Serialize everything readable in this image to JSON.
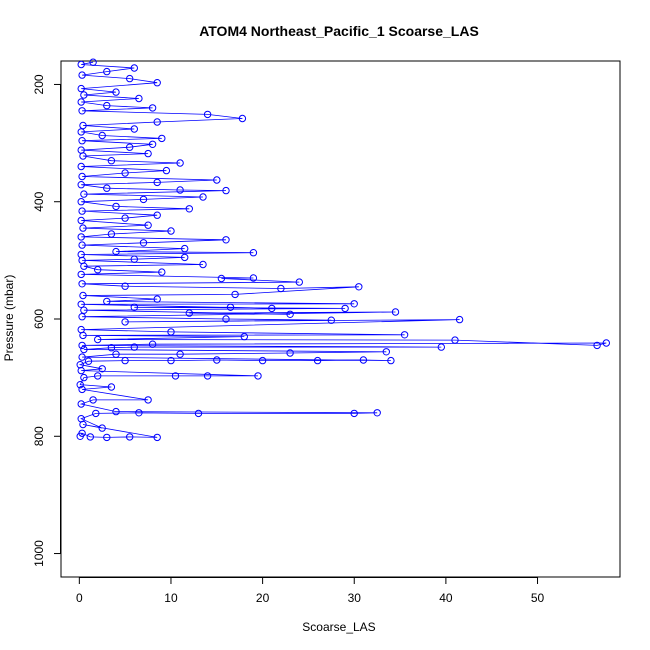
{
  "chart_data": {
    "type": "scatter",
    "title": "ATOM4 Northeast_Pacific_1 Scoarse_LAS",
    "xlabel": "Scoarse_LAS",
    "ylabel": "Pressure (mbar)",
    "xlim": [
      -2,
      59
    ],
    "ylim": [
      1040,
      160
    ],
    "y_reversed": true,
    "x_ticks": [
      0,
      10,
      20,
      30,
      40,
      50
    ],
    "y_ticks": [
      200,
      400,
      600,
      800,
      1000
    ],
    "grid": false,
    "legend": "none",
    "series_color": "#0000ff",
    "marker": "open-circle",
    "connected": true,
    "series": [
      {
        "points": [
          [
            0.1,
            800
          ],
          [
            0.3,
            795
          ],
          [
            1.2,
            801
          ],
          [
            3.0,
            802
          ],
          [
            5.5,
            801
          ],
          [
            8.5,
            802
          ],
          [
            0.4,
            780
          ],
          [
            2.5,
            786
          ],
          [
            0.2,
            770
          ],
          [
            1.8,
            761
          ],
          [
            6.5,
            760
          ],
          [
            13.0,
            761
          ],
          [
            30.0,
            761
          ],
          [
            32.5,
            760
          ],
          [
            4.0,
            758
          ],
          [
            0.2,
            745
          ],
          [
            1.5,
            738
          ],
          [
            7.5,
            738
          ],
          [
            0.3,
            720
          ],
          [
            3.5,
            716
          ],
          [
            0.1,
            712
          ],
          [
            0.5,
            700
          ],
          [
            2.0,
            697
          ],
          [
            10.5,
            697
          ],
          [
            14.0,
            697
          ],
          [
            19.5,
            697
          ],
          [
            0.2,
            688
          ],
          [
            2.5,
            685
          ],
          [
            0.1,
            678
          ],
          [
            1.0,
            672
          ],
          [
            5.0,
            671
          ],
          [
            10.0,
            671
          ],
          [
            15.0,
            670
          ],
          [
            20.0,
            671
          ],
          [
            26.0,
            671
          ],
          [
            31.0,
            670
          ],
          [
            34.0,
            671
          ],
          [
            0.3,
            665
          ],
          [
            4.0,
            660
          ],
          [
            11.0,
            660
          ],
          [
            23.0,
            658
          ],
          [
            33.5,
            656
          ],
          [
            0.5,
            652
          ],
          [
            3.5,
            649
          ],
          [
            6.0,
            648
          ],
          [
            39.5,
            648
          ],
          [
            0.3,
            645
          ],
          [
            8.0,
            643
          ],
          [
            57.5,
            641
          ],
          [
            56.5,
            645
          ],
          [
            41.0,
            636
          ],
          [
            2.0,
            635
          ],
          [
            18.0,
            630
          ],
          [
            0.4,
            628
          ],
          [
            35.5,
            627
          ],
          [
            10.0,
            622
          ],
          [
            0.2,
            618
          ],
          [
            41.5,
            601
          ],
          [
            5.0,
            605
          ],
          [
            27.5,
            602
          ],
          [
            16.0,
            600
          ],
          [
            0.3,
            596
          ],
          [
            34.5,
            588
          ],
          [
            12.0,
            590
          ],
          [
            23.0,
            592
          ],
          [
            0.5,
            585
          ],
          [
            29.0,
            582
          ],
          [
            6.0,
            580
          ],
          [
            16.5,
            580
          ],
          [
            21.0,
            582
          ],
          [
            0.2,
            575
          ],
          [
            30.0,
            574
          ],
          [
            3.0,
            570
          ],
          [
            8.5,
            566
          ],
          [
            0.4,
            560
          ],
          [
            17.0,
            558
          ],
          [
            30.5,
            545
          ],
          [
            22.0,
            548
          ],
          [
            5.0,
            544
          ],
          [
            0.3,
            540
          ],
          [
            24.0,
            537
          ],
          [
            15.5,
            531
          ],
          [
            19.0,
            530
          ],
          [
            0.2,
            524
          ],
          [
            9.0,
            520
          ],
          [
            2.0,
            516
          ],
          [
            0.5,
            510
          ],
          [
            13.5,
            507
          ],
          [
            0.3,
            500
          ],
          [
            6.0,
            498
          ],
          [
            11.5,
            495
          ],
          [
            0.2,
            490
          ],
          [
            19.0,
            487
          ],
          [
            4.0,
            485
          ],
          [
            11.5,
            480
          ],
          [
            0.3,
            474
          ],
          [
            7.0,
            470
          ],
          [
            16.0,
            465
          ],
          [
            0.2,
            460
          ],
          [
            3.5,
            455
          ],
          [
            10.0,
            450
          ],
          [
            0.4,
            445
          ],
          [
            7.5,
            440
          ],
          [
            0.2,
            432
          ],
          [
            5.0,
            428
          ],
          [
            8.5,
            423
          ],
          [
            0.3,
            416
          ],
          [
            12.0,
            412
          ],
          [
            4.0,
            408
          ],
          [
            0.2,
            400
          ],
          [
            7.0,
            396
          ],
          [
            13.5,
            392
          ],
          [
            0.5,
            387
          ],
          [
            16.0,
            381
          ],
          [
            11.0,
            380
          ],
          [
            3.0,
            377
          ],
          [
            0.2,
            371
          ],
          [
            8.5,
            367
          ],
          [
            15.0,
            363
          ],
          [
            0.3,
            357
          ],
          [
            5.0,
            351
          ],
          [
            9.5,
            347
          ],
          [
            0.2,
            340
          ],
          [
            11.0,
            334
          ],
          [
            3.5,
            330
          ],
          [
            0.4,
            322
          ],
          [
            7.5,
            318
          ],
          [
            0.2,
            312
          ],
          [
            5.5,
            307
          ],
          [
            8.0,
            302
          ],
          [
            0.3,
            296
          ],
          [
            9.0,
            292
          ],
          [
            2.5,
            287
          ],
          [
            0.2,
            281
          ],
          [
            6.0,
            276
          ],
          [
            0.4,
            270
          ],
          [
            8.5,
            264
          ],
          [
            17.8,
            258
          ],
          [
            14.0,
            251
          ],
          [
            0.3,
            245
          ],
          [
            8.0,
            240
          ],
          [
            3.0,
            236
          ],
          [
            0.2,
            230
          ],
          [
            6.5,
            224
          ],
          [
            0.5,
            218
          ],
          [
            4.0,
            213
          ],
          [
            0.2,
            207
          ],
          [
            8.5,
            197
          ],
          [
            5.5,
            190
          ],
          [
            0.3,
            184
          ],
          [
            3.0,
            178
          ],
          [
            6.0,
            172
          ],
          [
            0.2,
            166
          ],
          [
            1.5,
            162
          ]
        ]
      }
    ]
  }
}
